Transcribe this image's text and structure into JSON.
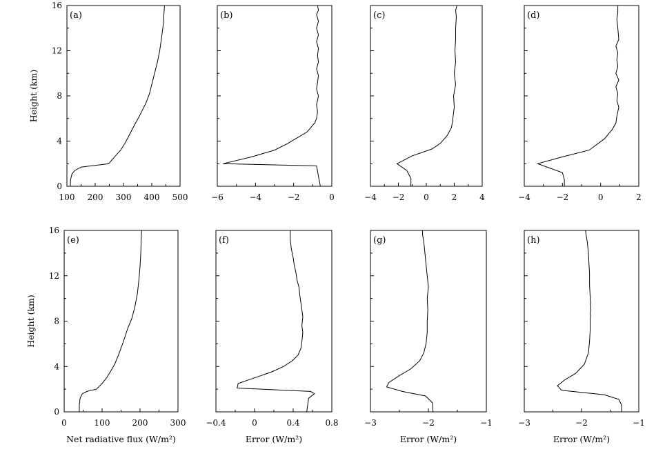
{
  "chart_data": [
    {
      "id": "a",
      "type": "line",
      "panel_label": "(a)",
      "xlabel": "",
      "ylabel": "Height (km)",
      "xlim": [
        100,
        500
      ],
      "ylim": [
        0,
        16
      ],
      "xticks": [
        100,
        200,
        300,
        400,
        500
      ],
      "xtick_labels": [
        "100",
        "200",
        "300",
        "400",
        "500"
      ],
      "yticks": [
        0,
        4,
        8,
        12,
        16
      ],
      "ytick_labels": [
        "0",
        "4",
        "8",
        "12",
        "16"
      ],
      "series": [
        {
          "x": [
            112,
            113,
            118,
            128,
            150,
            200,
            248,
            258,
            272,
            290,
            305,
            318,
            330,
            343,
            356,
            368,
            380,
            392,
            400,
            410,
            420,
            428,
            434,
            439,
            442,
            443,
            444,
            445
          ],
          "y": [
            0,
            0.6,
            1.1,
            1.4,
            1.7,
            1.85,
            2.0,
            2.3,
            2.7,
            3.2,
            3.8,
            4.4,
            5.0,
            5.6,
            6.2,
            6.8,
            7.4,
            8.2,
            9.0,
            10.0,
            11.0,
            12.0,
            13.0,
            14.0,
            14.6,
            15.2,
            15.6,
            16.0
          ]
        }
      ]
    },
    {
      "id": "b",
      "type": "line",
      "panel_label": "(b)",
      "xlabel": "",
      "ylabel": "",
      "xlim": [
        -6,
        0
      ],
      "ylim": [
        0,
        16
      ],
      "xticks": [
        -6,
        -4,
        -2,
        0
      ],
      "xtick_labels": [
        "−6",
        "−4",
        "−2",
        "0"
      ],
      "yticks": [
        0,
        4,
        8,
        12,
        16
      ],
      "ytick_labels": [],
      "series": [
        {
          "x": [
            -0.6,
            -0.7,
            -0.8,
            -5.7,
            -4.2,
            -3.0,
            -2.3,
            -1.9,
            -1.6,
            -1.3,
            -1.1,
            -0.9,
            -0.8,
            -0.75,
            -0.8,
            -0.7,
            -0.8,
            -0.75,
            -0.7,
            -0.8,
            -0.7,
            -0.75,
            -0.7,
            -0.8,
            -0.7,
            -0.8,
            -0.7,
            -0.8,
            -0.7,
            -0.75
          ],
          "y": [
            0,
            0.9,
            1.8,
            2.0,
            2.6,
            3.2,
            3.8,
            4.2,
            4.5,
            4.8,
            5.2,
            5.6,
            6.0,
            6.6,
            7.2,
            8.0,
            8.6,
            9.2,
            9.8,
            10.4,
            11.0,
            11.6,
            12.2,
            12.8,
            13.4,
            14.0,
            14.6,
            15.2,
            15.6,
            16.0
          ]
        }
      ]
    },
    {
      "id": "c",
      "type": "line",
      "panel_label": "(c)",
      "xlabel": "",
      "ylabel": "",
      "xlim": [
        -4,
        4
      ],
      "ylim": [
        0,
        16
      ],
      "xticks": [
        -4,
        -2,
        0,
        2,
        4
      ],
      "xtick_labels": [
        "−4",
        "−2",
        "0",
        "2",
        "4"
      ],
      "yticks": [
        0,
        4,
        8,
        12,
        16
      ],
      "ytick_labels": [],
      "series": [
        {
          "x": [
            -1.1,
            -1.1,
            -1.4,
            -2.1,
            -1.0,
            0.4,
            1.0,
            1.5,
            1.8,
            1.9,
            2.0,
            1.95,
            2.1,
            2.0,
            2.1,
            2.05,
            2.1,
            2.1,
            2.15,
            2.1,
            2.2
          ],
          "y": [
            0,
            0.7,
            1.4,
            2.0,
            2.7,
            3.3,
            3.8,
            4.5,
            5.2,
            6.0,
            7.0,
            8.0,
            9.0,
            10.0,
            11.0,
            12.0,
            13.0,
            14.0,
            15.0,
            15.6,
            16.0
          ]
        }
      ]
    },
    {
      "id": "d",
      "type": "line",
      "panel_label": "(d)",
      "xlabel": "",
      "ylabel": "",
      "xlim": [
        -4,
        2
      ],
      "ylim": [
        0,
        16
      ],
      "xticks": [
        -4,
        -2,
        0,
        2
      ],
      "xtick_labels": [
        "−4",
        "−2",
        "0",
        "2"
      ],
      "yticks": [
        0,
        4,
        8,
        12,
        16
      ],
      "ytick_labels": [],
      "series": [
        {
          "x": [
            -1.9,
            -1.9,
            -2.0,
            -3.3,
            -2.0,
            -0.6,
            0.2,
            0.6,
            0.8,
            0.85,
            0.95,
            0.85,
            0.9,
            0.8,
            0.95,
            0.8,
            0.9,
            0.85,
            0.9,
            0.8,
            0.95,
            0.9,
            0.85,
            0.9,
            0.9
          ],
          "y": [
            0,
            0.6,
            1.2,
            2.0,
            2.6,
            3.2,
            4.2,
            5.0,
            5.6,
            6.2,
            7.0,
            7.6,
            8.2,
            8.8,
            9.4,
            10.0,
            10.6,
            11.2,
            11.8,
            12.4,
            13.0,
            14.0,
            14.8,
            15.4,
            16.0
          ]
        }
      ]
    },
    {
      "id": "e",
      "type": "line",
      "panel_label": "(e)",
      "xlabel": "Net radiative flux (W/m²)",
      "ylabel": "Height (km)",
      "xlim": [
        0,
        300
      ],
      "ylim": [
        0,
        16
      ],
      "xticks": [
        0,
        100,
        200,
        300
      ],
      "xtick_labels": [
        "0",
        "100",
        "200",
        "300"
      ],
      "yticks": [
        0,
        4,
        8,
        12,
        16
      ],
      "ytick_labels": [
        "0",
        "4",
        "8",
        "12",
        "16"
      ],
      "series": [
        {
          "x": [
            40,
            40,
            42,
            48,
            60,
            85,
            100,
            112,
            123,
            133,
            143,
            152,
            160,
            168,
            178,
            186,
            193,
            197,
            200,
            202,
            203,
            204
          ],
          "y": [
            0,
            0.6,
            1.2,
            1.6,
            1.8,
            2.0,
            2.5,
            3.0,
            3.6,
            4.2,
            5.0,
            5.8,
            6.6,
            7.4,
            8.2,
            9.2,
            10.4,
            11.6,
            12.8,
            14.0,
            15.0,
            16.0
          ]
        }
      ]
    },
    {
      "id": "f",
      "type": "line",
      "panel_label": "(f)",
      "xlabel": "Error (W/m²)",
      "ylabel": "",
      "xlim": [
        -0.4,
        0.8
      ],
      "ylim": [
        0,
        16
      ],
      "xticks": [
        -0.4,
        0,
        0.4,
        0.8
      ],
      "xtick_labels": [
        "−0.4",
        "0",
        "0.4",
        "0.8"
      ],
      "yticks": [
        0,
        4,
        8,
        12,
        16
      ],
      "ytick_labels": [],
      "series": [
        {
          "x": [
            0.54,
            0.55,
            0.56,
            0.62,
            0.58,
            -0.18,
            -0.17,
            0.0,
            0.17,
            0.3,
            0.39,
            0.45,
            0.48,
            0.49,
            0.5,
            0.49,
            0.5,
            0.49,
            0.48,
            0.47,
            0.46,
            0.44,
            0.43,
            0.41,
            0.4,
            0.38,
            0.37,
            0.37
          ],
          "y": [
            0,
            0.6,
            1.2,
            1.6,
            1.8,
            2.1,
            2.5,
            3.0,
            3.5,
            4.0,
            4.5,
            5.0,
            5.6,
            6.2,
            7.0,
            7.6,
            8.4,
            9.0,
            9.6,
            10.2,
            11.0,
            11.6,
            12.2,
            13.0,
            13.6,
            14.4,
            15.2,
            16.0
          ]
        }
      ]
    },
    {
      "id": "g",
      "type": "line",
      "panel_label": "(g)",
      "xlabel": "Error (W/m²)",
      "ylabel": "",
      "xlim": [
        -3,
        -1
      ],
      "ylim": [
        0,
        16
      ],
      "xticks": [
        -3,
        -2,
        -1
      ],
      "xtick_labels": [
        "−3",
        "−2",
        "−1"
      ],
      "yticks": [
        0,
        4,
        8,
        12,
        16
      ],
      "ytick_labels": [],
      "series": [
        {
          "x": [
            -1.92,
            -1.93,
            -2.05,
            -2.45,
            -2.72,
            -2.68,
            -2.5,
            -2.3,
            -2.15,
            -2.08,
            -2.04,
            -2.02,
            -2.02,
            -2.01,
            -2.02,
            -2.0,
            -2.02,
            -2.04,
            -2.06,
            -2.08,
            -2.1,
            -2.1
          ],
          "y": [
            0,
            0.8,
            1.4,
            1.8,
            2.2,
            2.6,
            3.2,
            3.8,
            4.5,
            5.2,
            6.0,
            7.0,
            8.0,
            9.0,
            10.0,
            11.0,
            12.0,
            13.0,
            14.0,
            15.0,
            15.6,
            16.0
          ]
        }
      ]
    },
    {
      "id": "h",
      "type": "line",
      "panel_label": "(h)",
      "xlabel": "Error (W/m²)",
      "ylabel": "",
      "xlim": [
        -3,
        -1
      ],
      "ylim": [
        0,
        16
      ],
      "xticks": [
        -3,
        -2,
        -1
      ],
      "xtick_labels": [
        "−3",
        "−2",
        "−1"
      ],
      "yticks": [
        0,
        4,
        8,
        12,
        16
      ],
      "ytick_labels": [],
      "series": [
        {
          "x": [
            -1.3,
            -1.3,
            -1.35,
            -1.6,
            -2.35,
            -2.42,
            -2.3,
            -2.1,
            -1.95,
            -1.88,
            -1.86,
            -1.85,
            -1.85,
            -1.84,
            -1.85,
            -1.86,
            -1.86,
            -1.87,
            -1.88,
            -1.9,
            -1.92,
            -1.93
          ],
          "y": [
            0,
            0.6,
            1.1,
            1.5,
            1.9,
            2.3,
            2.8,
            3.4,
            4.2,
            5.2,
            6.2,
            7.2,
            8.2,
            9.2,
            10.2,
            11.2,
            12.2,
            13.0,
            14.0,
            15.0,
            15.6,
            16.0
          ]
        }
      ]
    }
  ]
}
